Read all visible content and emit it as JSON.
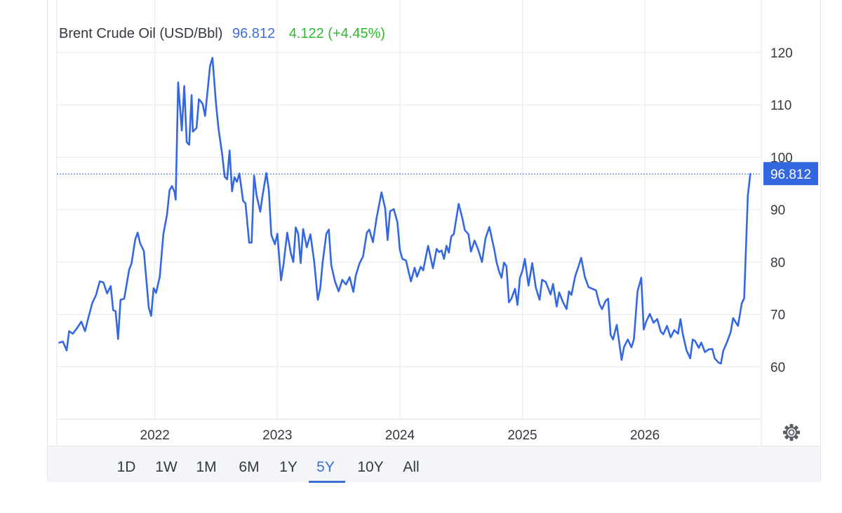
{
  "header": {
    "instrument": "Brent Crude Oil (USD/Bbl)",
    "price": "96.812",
    "change": "4.122 (+4.45%)",
    "price_color": "#3d6fd8",
    "change_color": "#2fba2f"
  },
  "last_price_label": "96.812",
  "timeframes": [
    {
      "label": "1D",
      "active": false
    },
    {
      "label": "1W",
      "active": false
    },
    {
      "label": "1M",
      "active": false
    },
    {
      "label": "6M",
      "active": false
    },
    {
      "label": "1Y",
      "active": false
    },
    {
      "label": "5Y",
      "active": true
    },
    {
      "label": "10Y",
      "active": false
    },
    {
      "label": "All",
      "active": false
    }
  ],
  "settings_icon": "gear-icon",
  "chart_data": {
    "type": "line",
    "series": [
      {
        "color": "#3468e0",
        "values": [
          [
            2021.22,
            64.6
          ],
          [
            2021.25,
            64.8
          ],
          [
            2021.28,
            63.1
          ],
          [
            2021.3,
            66.8
          ],
          [
            2021.33,
            66.3
          ],
          [
            2021.36,
            67.2
          ],
          [
            2021.4,
            68.6
          ],
          [
            2021.43,
            66.8
          ],
          [
            2021.46,
            69.6
          ],
          [
            2021.49,
            72.2
          ],
          [
            2021.52,
            73.7
          ],
          [
            2021.55,
            76.3
          ],
          [
            2021.58,
            76.1
          ],
          [
            2021.61,
            74.0
          ],
          [
            2021.64,
            75.4
          ],
          [
            2021.66,
            70.8
          ],
          [
            2021.68,
            70.6
          ],
          [
            2021.7,
            65.3
          ],
          [
            2021.72,
            72.8
          ],
          [
            2021.75,
            73.0
          ],
          [
            2021.79,
            78.5
          ],
          [
            2021.81,
            79.8
          ],
          [
            2021.84,
            84.3
          ],
          [
            2021.86,
            85.6
          ],
          [
            2021.88,
            83.6
          ],
          [
            2021.91,
            82.1
          ],
          [
            2021.95,
            71.3
          ],
          [
            2021.97,
            69.7
          ],
          [
            2021.99,
            75.0
          ],
          [
            2022.01,
            74.1
          ],
          [
            2022.04,
            77.2
          ],
          [
            2022.07,
            85.4
          ],
          [
            2022.1,
            89.1
          ],
          [
            2022.12,
            93.7
          ],
          [
            2022.14,
            94.5
          ],
          [
            2022.16,
            93.4
          ],
          [
            2022.17,
            91.9
          ],
          [
            2022.19,
            114.3
          ],
          [
            2022.22,
            105.1
          ],
          [
            2022.24,
            113.6
          ],
          [
            2022.26,
            102.9
          ],
          [
            2022.28,
            102.4
          ],
          [
            2022.3,
            111.9
          ],
          [
            2022.31,
            104.9
          ],
          [
            2022.34,
            105.6
          ],
          [
            2022.36,
            111.1
          ],
          [
            2022.39,
            110.2
          ],
          [
            2022.41,
            107.9
          ],
          [
            2022.45,
            117.4
          ],
          [
            2022.47,
            119.0
          ],
          [
            2022.5,
            110.0
          ],
          [
            2022.52,
            105.4
          ],
          [
            2022.55,
            100.5
          ],
          [
            2022.57,
            96.3
          ],
          [
            2022.59,
            95.8
          ],
          [
            2022.61,
            101.3
          ],
          [
            2022.63,
            93.5
          ],
          [
            2022.65,
            96.2
          ],
          [
            2022.67,
            95.3
          ],
          [
            2022.69,
            96.9
          ],
          [
            2022.72,
            91.7
          ],
          [
            2022.74,
            91.2
          ],
          [
            2022.77,
            83.7
          ],
          [
            2022.79,
            83.7
          ],
          [
            2022.81,
            96.5
          ],
          [
            2022.83,
            92.8
          ],
          [
            2022.86,
            89.6
          ],
          [
            2022.88,
            92.8
          ],
          [
            2022.91,
            97.0
          ],
          [
            2022.93,
            93.8
          ],
          [
            2022.95,
            85.2
          ],
          [
            2022.98,
            83.4
          ],
          [
            2023.0,
            85.4
          ],
          [
            2023.03,
            76.5
          ],
          [
            2023.05,
            79.5
          ],
          [
            2023.08,
            85.6
          ],
          [
            2023.11,
            81.7
          ],
          [
            2023.13,
            80.0
          ],
          [
            2023.15,
            86.6
          ],
          [
            2023.17,
            85.4
          ],
          [
            2023.19,
            79.8
          ],
          [
            2023.21,
            86.3
          ],
          [
            2023.24,
            82.8
          ],
          [
            2023.27,
            85.3
          ],
          [
            2023.3,
            80.2
          ],
          [
            2023.33,
            72.8
          ],
          [
            2023.35,
            75.0
          ],
          [
            2023.37,
            80.0
          ],
          [
            2023.4,
            85.4
          ],
          [
            2023.42,
            86.2
          ],
          [
            2023.44,
            79.4
          ],
          [
            2023.47,
            76.3
          ],
          [
            2023.5,
            74.4
          ],
          [
            2023.53,
            76.6
          ],
          [
            2023.56,
            75.7
          ],
          [
            2023.59,
            77.1
          ],
          [
            2023.62,
            74.3
          ],
          [
            2023.64,
            77.4
          ],
          [
            2023.67,
            79.7
          ],
          [
            2023.7,
            81.1
          ],
          [
            2023.73,
            85.6
          ],
          [
            2023.75,
            86.2
          ],
          [
            2023.78,
            83.8
          ],
          [
            2023.81,
            88.4
          ],
          [
            2023.85,
            93.3
          ],
          [
            2023.88,
            90.2
          ],
          [
            2023.9,
            84.2
          ],
          [
            2023.92,
            89.7
          ],
          [
            2023.95,
            90.1
          ],
          [
            2023.98,
            87.6
          ],
          [
            2024.0,
            82.3
          ],
          [
            2024.02,
            80.6
          ],
          [
            2024.05,
            80.3
          ],
          [
            2024.09,
            76.3
          ],
          [
            2024.12,
            78.9
          ],
          [
            2024.14,
            77.2
          ],
          [
            2024.17,
            79.1
          ],
          [
            2024.19,
            78.4
          ],
          [
            2024.23,
            83.1
          ],
          [
            2024.27,
            78.8
          ],
          [
            2024.3,
            82.5
          ],
          [
            2024.32,
            81.9
          ],
          [
            2024.34,
            82.2
          ],
          [
            2024.36,
            80.6
          ],
          [
            2024.38,
            83.1
          ],
          [
            2024.4,
            81.8
          ],
          [
            2024.42,
            84.9
          ],
          [
            2024.44,
            85.3
          ],
          [
            2024.48,
            91.1
          ],
          [
            2024.51,
            88.3
          ],
          [
            2024.53,
            86.1
          ],
          [
            2024.56,
            85.3
          ],
          [
            2024.58,
            82.0
          ],
          [
            2024.61,
            84.1
          ],
          [
            2024.64,
            82.3
          ],
          [
            2024.67,
            80.0
          ],
          [
            2024.7,
            84.6
          ],
          [
            2024.73,
            86.7
          ],
          [
            2024.77,
            82.4
          ],
          [
            2024.79,
            79.9
          ],
          [
            2024.81,
            78.2
          ],
          [
            2024.83,
            77.0
          ],
          [
            2024.85,
            79.9
          ],
          [
            2024.87,
            79.2
          ],
          [
            2024.89,
            72.3
          ],
          [
            2024.91,
            73.0
          ],
          [
            2024.94,
            74.9
          ],
          [
            2024.96,
            71.8
          ],
          [
            2024.98,
            77.0
          ],
          [
            2025.0,
            78.3
          ],
          [
            2025.02,
            80.6
          ],
          [
            2025.05,
            75.5
          ],
          [
            2025.08,
            79.8
          ],
          [
            2025.11,
            75.1
          ],
          [
            2025.14,
            72.8
          ],
          [
            2025.16,
            76.6
          ],
          [
            2025.19,
            76.2
          ],
          [
            2025.23,
            73.8
          ],
          [
            2025.25,
            75.8
          ],
          [
            2025.28,
            71.5
          ],
          [
            2025.3,
            74.2
          ],
          [
            2025.33,
            72.4
          ],
          [
            2025.36,
            71.0
          ],
          [
            2025.38,
            74.4
          ],
          [
            2025.4,
            73.7
          ],
          [
            2025.43,
            77.2
          ],
          [
            2025.46,
            79.3
          ],
          [
            2025.48,
            80.8
          ],
          [
            2025.51,
            77.1
          ],
          [
            2025.54,
            75.2
          ],
          [
            2025.57,
            74.9
          ],
          [
            2025.6,
            74.6
          ],
          [
            2025.63,
            71.9
          ],
          [
            2025.65,
            71.0
          ],
          [
            2025.68,
            72.6
          ],
          [
            2025.7,
            73.0
          ],
          [
            2025.72,
            66.1
          ],
          [
            2025.74,
            65.2
          ],
          [
            2025.77,
            68.0
          ],
          [
            2025.81,
            61.3
          ],
          [
            2025.83,
            63.8
          ],
          [
            2025.86,
            65.2
          ],
          [
            2025.89,
            63.7
          ],
          [
            2025.91,
            65.2
          ],
          [
            2025.94,
            74.4
          ],
          [
            2025.97,
            77.0
          ],
          [
            2025.99,
            67.1
          ],
          [
            2026.01,
            68.6
          ],
          [
            2026.04,
            70.1
          ],
          [
            2026.07,
            68.4
          ],
          [
            2026.1,
            69.1
          ],
          [
            2026.13,
            66.7
          ],
          [
            2026.15,
            66.2
          ],
          [
            2026.18,
            67.8
          ],
          [
            2026.21,
            65.6
          ],
          [
            2026.24,
            67.0
          ],
          [
            2026.27,
            66.3
          ],
          [
            2026.29,
            69.1
          ],
          [
            2026.31,
            66.1
          ],
          [
            2026.34,
            63.1
          ],
          [
            2026.37,
            61.6
          ],
          [
            2026.39,
            65.2
          ],
          [
            2026.41,
            64.9
          ],
          [
            2026.44,
            63.6
          ],
          [
            2026.46,
            64.6
          ],
          [
            2026.49,
            62.8
          ],
          [
            2026.52,
            63.3
          ],
          [
            2026.55,
            63.4
          ],
          [
            2026.57,
            61.6
          ],
          [
            2026.6,
            60.8
          ],
          [
            2026.62,
            60.6
          ],
          [
            2026.64,
            63.1
          ],
          [
            2026.67,
            64.7
          ],
          [
            2026.7,
            66.6
          ],
          [
            2026.72,
            69.3
          ],
          [
            2026.76,
            67.8
          ],
          [
            2026.79,
            72.1
          ],
          [
            2026.81,
            73.1
          ],
          [
            2026.84,
            92.7
          ],
          [
            2026.86,
            96.812
          ]
        ]
      }
    ],
    "title": "Brent Crude Oil (USD/Bbl)",
    "y_ticks": [
      60,
      70,
      80,
      90,
      100,
      110,
      120
    ],
    "x_ticks": [
      2022,
      2023,
      2024,
      2025,
      2026
    ],
    "ylim": [
      50,
      120
    ],
    "xlim": [
      2021.2,
      2026.95
    ],
    "current_value": 96.812,
    "grid": true,
    "legend": "none"
  }
}
